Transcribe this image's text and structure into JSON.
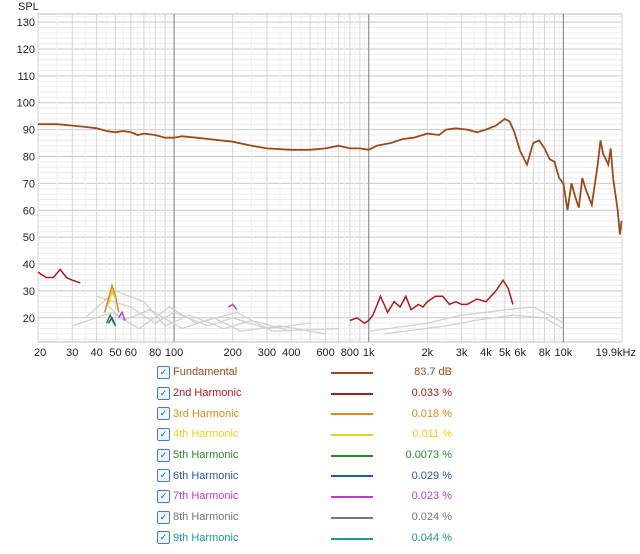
{
  "chart_data": {
    "type": "line",
    "xscale": "log",
    "xlim": [
      20,
      20000
    ],
    "ylim": [
      11,
      133
    ],
    "ylabel": "SPL",
    "x_ticks": [
      {
        "v": 20,
        "l": "20"
      },
      {
        "v": 30,
        "l": "30"
      },
      {
        "v": 40,
        "l": "40"
      },
      {
        "v": 50,
        "l": "50"
      },
      {
        "v": 60,
        "l": "60"
      },
      {
        "v": 80,
        "l": "80"
      },
      {
        "v": 100,
        "l": "100"
      },
      {
        "v": 200,
        "l": "200"
      },
      {
        "v": 300,
        "l": "300"
      },
      {
        "v": 400,
        "l": "400"
      },
      {
        "v": 600,
        "l": "600"
      },
      {
        "v": 800,
        "l": "800"
      },
      {
        "v": 1000,
        "l": "1k"
      },
      {
        "v": 2000,
        "l": "2k"
      },
      {
        "v": 3000,
        "l": "3k"
      },
      {
        "v": 4000,
        "l": "4k"
      },
      {
        "v": 5000,
        "l": "5k"
      },
      {
        "v": 6000,
        "l": "6k"
      },
      {
        "v": 8000,
        "l": "8k"
      },
      {
        "v": 10000,
        "l": "10k"
      },
      {
        "v": 19900,
        "l": "19.9kHz"
      }
    ],
    "y_ticks": [
      20,
      30,
      40,
      50,
      60,
      70,
      80,
      90,
      100,
      110,
      120,
      130
    ],
    "series": [
      {
        "name": "Fundamental",
        "color": "#9c4a1a",
        "value": "83.7 dB",
        "points": [
          [
            20,
            92
          ],
          [
            25,
            92
          ],
          [
            30,
            91.5
          ],
          [
            35,
            91
          ],
          [
            40,
            90.5
          ],
          [
            45,
            89.5
          ],
          [
            50,
            89
          ],
          [
            55,
            89.5
          ],
          [
            60,
            89
          ],
          [
            65,
            88
          ],
          [
            70,
            88.5
          ],
          [
            80,
            88
          ],
          [
            90,
            87
          ],
          [
            100,
            87
          ],
          [
            110,
            87.5
          ],
          [
            130,
            87
          ],
          [
            150,
            86.5
          ],
          [
            200,
            85.5
          ],
          [
            250,
            84
          ],
          [
            300,
            83
          ],
          [
            400,
            82.5
          ],
          [
            500,
            82.5
          ],
          [
            600,
            83
          ],
          [
            700,
            84
          ],
          [
            800,
            83
          ],
          [
            900,
            83
          ],
          [
            1000,
            82.5
          ],
          [
            1100,
            84
          ],
          [
            1300,
            85
          ],
          [
            1500,
            86.5
          ],
          [
            1700,
            87
          ],
          [
            2000,
            88.5
          ],
          [
            2300,
            88
          ],
          [
            2500,
            90
          ],
          [
            2800,
            90.5
          ],
          [
            3200,
            90
          ],
          [
            3600,
            89
          ],
          [
            4000,
            90
          ],
          [
            4500,
            91.5
          ],
          [
            5000,
            94
          ],
          [
            5300,
            93
          ],
          [
            5600,
            89
          ],
          [
            6000,
            82
          ],
          [
            6500,
            77
          ],
          [
            7000,
            85
          ],
          [
            7500,
            86
          ],
          [
            8000,
            83
          ],
          [
            8500,
            79
          ],
          [
            9000,
            78
          ],
          [
            9500,
            72
          ],
          [
            10000,
            70
          ],
          [
            10500,
            60
          ],
          [
            11000,
            70
          ],
          [
            11500,
            65
          ],
          [
            12000,
            61
          ],
          [
            12500,
            72
          ],
          [
            13000,
            68
          ],
          [
            14000,
            62
          ],
          [
            15000,
            77
          ],
          [
            15500,
            86
          ],
          [
            16000,
            81
          ],
          [
            17000,
            77
          ],
          [
            17500,
            83
          ],
          [
            18000,
            72
          ],
          [
            19000,
            60
          ],
          [
            19500,
            51
          ],
          [
            19900,
            56
          ]
        ]
      },
      {
        "name": "2nd Harmonic",
        "color": "#b01a1a",
        "value": "0.033 %",
        "segments": [
          [
            [
              20,
              37
            ],
            [
              22,
              35
            ],
            [
              24,
              35
            ],
            [
              26,
              38
            ],
            [
              28,
              35
            ],
            [
              30,
              34
            ],
            [
              33,
              33
            ]
          ],
          [
            [
              800,
              19
            ],
            [
              870,
              20
            ],
            [
              950,
              18
            ],
            [
              1000,
              19
            ],
            [
              1050,
              21
            ],
            [
              1150,
              28
            ],
            [
              1250,
              22
            ],
            [
              1350,
              26
            ],
            [
              1450,
              24
            ],
            [
              1550,
              28
            ],
            [
              1650,
              23
            ],
            [
              1800,
              25
            ],
            [
              1900,
              24
            ],
            [
              2000,
              26
            ],
            [
              2200,
              28
            ],
            [
              2400,
              28
            ],
            [
              2600,
              25
            ],
            [
              2800,
              26
            ],
            [
              3000,
              25
            ],
            [
              3200,
              25
            ],
            [
              3600,
              27
            ],
            [
              4000,
              26
            ],
            [
              4500,
              30
            ],
            [
              4900,
              34
            ],
            [
              5200,
              31
            ],
            [
              5500,
              25
            ]
          ]
        ]
      },
      {
        "name": "3rd Harmonic",
        "color": "#e08a1a",
        "value": "0.018 %",
        "segments": [
          [
            [
              44,
              22
            ],
            [
              46,
              27
            ],
            [
              48,
              32
            ],
            [
              50,
              28
            ],
            [
              52,
              22
            ]
          ]
        ]
      },
      {
        "name": "4th Harmonic",
        "color": "#e8d21a",
        "value": "0.011 %",
        "segments": [
          [
            [
              46,
              25
            ],
            [
              48,
              30
            ],
            [
              50,
              27
            ]
          ]
        ]
      },
      {
        "name": "5th Harmonic",
        "color": "#2a8a2a",
        "value": "0.0073 %",
        "segments": [
          [
            [
              45,
              18
            ],
            [
              47,
              21
            ],
            [
              49,
              18
            ]
          ]
        ]
      },
      {
        "name": "6th Harmonic",
        "color": "#2a5aa6",
        "value": "0.029 %",
        "segments": [
          [
            [
              46,
              18
            ],
            [
              48,
              20
            ],
            [
              50,
              17
            ]
          ]
        ]
      },
      {
        "name": "7th Harmonic",
        "color": "#c43cc4",
        "value": "0.023 %",
        "segments": [
          [
            [
              52,
              20
            ],
            [
              54,
              22
            ],
            [
              56,
              19
            ]
          ],
          [
            [
              190,
              24
            ],
            [
              200,
              25
            ],
            [
              210,
              23
            ]
          ]
        ]
      },
      {
        "name": "8th Harmonic",
        "color": "#777777",
        "value": "0.024 %",
        "segments": []
      },
      {
        "name": "9th Harmonic",
        "color": "#1a9a9a",
        "value": "0.044 %",
        "segments": []
      }
    ],
    "background_traces_color": "#cfcfcf",
    "grid": true
  }
}
